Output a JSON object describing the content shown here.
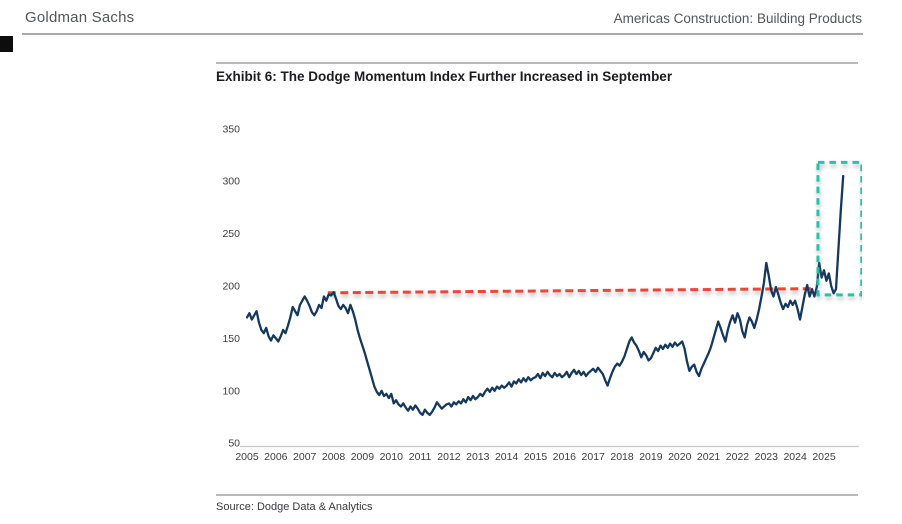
{
  "header": {
    "brand": "Goldman Sachs",
    "doc_title": "Americas Construction: Building Products"
  },
  "exhibit": {
    "title": "Exhibit 6: The Dodge Momentum Index Further Increased in September",
    "source": "Source: Dodge Data & Analytics"
  },
  "colors": {
    "series_line": "#15395e",
    "reference_line": "#f04438",
    "highlight_box": "#25c3a9",
    "axis_line": "#c8c8c8",
    "header_text": "#54565a"
  },
  "chart_data": {
    "type": "line",
    "title": "Exhibit 6: The Dodge Momentum Index Further Increased in September",
    "xlabel": "",
    "ylabel": "",
    "ylim": [
      50,
      350
    ],
    "grid": false,
    "legend": "none",
    "x_start_year": 2005,
    "x_step_months": 1,
    "x_tick_labels": [
      "2005",
      "2006",
      "2007",
      "2008",
      "2009",
      "2010",
      "2011",
      "2012",
      "2013",
      "2014",
      "2015",
      "2016",
      "2017",
      "2018",
      "2019",
      "2020",
      "2021",
      "2022",
      "2023",
      "2024",
      "2025"
    ],
    "y_tick_labels": [
      350,
      300,
      250,
      200,
      150,
      100,
      50
    ],
    "series": [
      {
        "name": "Dodge Momentum Index",
        "color": "#15395e",
        "values": [
          170,
          174,
          168,
          172,
          176,
          165,
          158,
          155,
          160,
          152,
          148,
          153,
          150,
          147,
          152,
          158,
          155,
          162,
          170,
          180,
          176,
          172,
          182,
          186,
          190,
          186,
          181,
          175,
          172,
          176,
          182,
          179,
          190,
          186,
          192,
          191,
          194,
          188,
          181,
          178,
          182,
          179,
          174,
          182,
          176,
          168,
          158,
          150,
          143,
          136,
          128,
          120,
          112,
          104,
          99,
          96,
          100,
          95,
          97,
          93,
          97,
          88,
          91,
          87,
          85,
          88,
          84,
          81,
          85,
          82,
          86,
          83,
          79,
          77,
          82,
          79,
          77,
          80,
          84,
          89,
          86,
          83,
          85,
          87,
          88,
          85,
          89,
          87,
          90,
          88,
          92,
          89,
          94,
          91,
          95,
          92,
          94,
          97,
          95,
          99,
          102,
          99,
          103,
          100,
          104,
          102,
          105,
          103,
          105,
          108,
          104,
          109,
          107,
          111,
          108,
          112,
          109,
          113,
          110,
          112,
          113,
          116,
          112,
          117,
          114,
          118,
          115,
          113,
          117,
          114,
          116,
          113,
          115,
          118,
          113,
          117,
          120,
          116,
          119,
          115,
          118,
          114,
          117,
          119,
          121,
          118,
          122,
          119,
          116,
          110,
          105,
          112,
          118,
          123,
          126,
          124,
          128,
          133,
          140,
          147,
          151,
          146,
          143,
          138,
          132,
          137,
          134,
          129,
          131,
          136,
          141,
          138,
          143,
          140,
          144,
          141,
          145,
          142,
          146,
          143,
          145,
          147,
          140,
          128,
          119,
          123,
          125,
          118,
          114,
          121,
          126,
          131,
          136,
          142,
          150,
          158,
          166,
          160,
          153,
          147,
          158,
          166,
          172,
          165,
          174,
          168,
          157,
          151,
          163,
          170,
          166,
          160,
          168,
          178,
          190,
          203,
          222,
          210,
          196,
          190,
          199,
          192,
          184,
          178,
          183,
          180,
          186,
          182,
          186,
          178,
          168,
          180,
          192,
          201,
          190,
          197,
          190,
          199,
          222,
          208,
          215,
          205,
          212,
          200,
          193,
          197,
          235,
          272,
          305
        ]
      }
    ],
    "annotations": {
      "reference_line": {
        "description": "dashed reference at 2008 peak level",
        "color": "#f04438",
        "from": {
          "t": 2007.8,
          "v": 193.5
        },
        "to": {
          "t": 2024.62,
          "v": 197.5
        }
      },
      "highlight_box": {
        "description": "dashed box highlighting September 2025 surge",
        "color": "#25c3a9",
        "t0": 2024.79,
        "t1": 2026.31,
        "v0": 191.5,
        "v1": 318
      }
    }
  }
}
